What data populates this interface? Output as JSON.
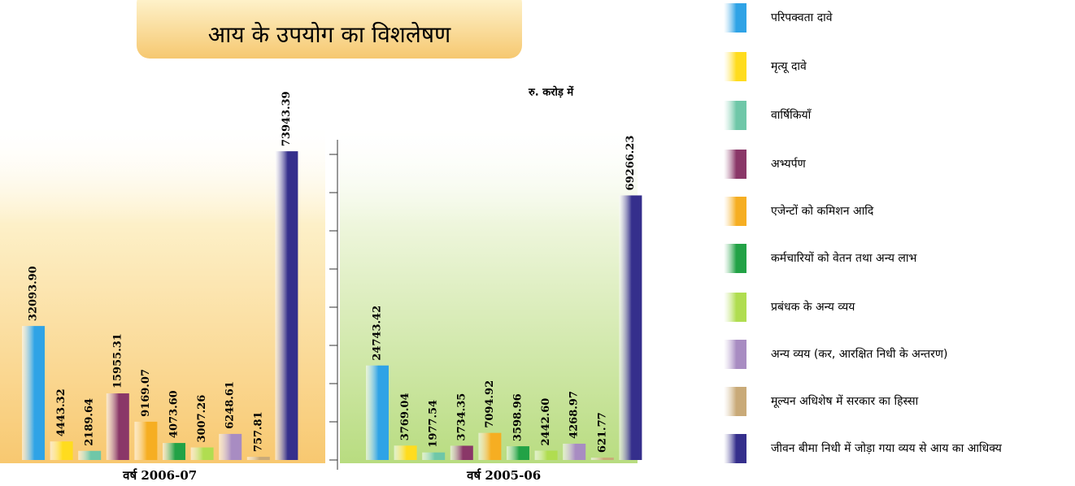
{
  "title": "आय के उपयोग का विशलेषण",
  "unit_note": "रु. करोड़ में",
  "legend": [
    {
      "name": "परिपक्वता दावे",
      "color": "#2fa3e6"
    },
    {
      "name": "मृत्यू दावे",
      "color": "#ffdc1e"
    },
    {
      "name": "वार्षिकियाँ",
      "color": "#6fc7a8"
    },
    {
      "name": "अभ्यर्पण",
      "color": "#8a3768"
    },
    {
      "name": "एजेन्टों को कमिशन आदि",
      "color": "#f6ae22"
    },
    {
      "name": "कर्मचारियों को वेतन तथा अन्य लाभ",
      "color": "#22a246"
    },
    {
      "name": "प्रबंधक के अन्य व्यय",
      "color": "#b0dd50"
    },
    {
      "name": "अन्य व्यय (कर, आरक्षित निधी के अन्तरण)",
      "color": "#a88cc2"
    },
    {
      "name": "मूल्यन अधिशेष में सरकार का हिस्सा",
      "color": "#c9aa78"
    },
    {
      "name": "जीवन बीमा निधी में जोड़ा गया व्यय से आय का आधिक्य",
      "color": "#352f8c"
    }
  ],
  "chart_data": [
    {
      "type": "bar",
      "category": "वर्ष 2006-07",
      "values": [
        32093.9,
        4443.32,
        2189.64,
        15955.31,
        9169.07,
        4073.6,
        3007.26,
        6248.61,
        757.81,
        73943.39
      ],
      "value_labels": [
        "32093.90",
        "4443.32",
        "2189.64",
        "15955.31",
        "9169.07",
        "4073.60",
        "3007.26",
        "6248.61",
        "757.81",
        "73943.39"
      ],
      "ylim": [
        0,
        80000
      ]
    },
    {
      "type": "bar",
      "category": "वर्ष 2005-06",
      "values": [
        24743.42,
        3769.04,
        1977.54,
        3734.35,
        7094.92,
        3598.96,
        2442.6,
        4268.97,
        621.77,
        69266.23
      ],
      "value_labels": [
        "24743.42",
        "3769.04",
        "1977.54",
        "3734.35",
        "7094.92",
        "3598.96",
        "2442.60",
        "4268.97",
        "621.77",
        "69266.23"
      ],
      "ylim": [
        0,
        80000
      ],
      "yticks": [
        0,
        10000,
        20000,
        30000,
        40000,
        50000,
        60000,
        70000,
        80000
      ]
    }
  ]
}
